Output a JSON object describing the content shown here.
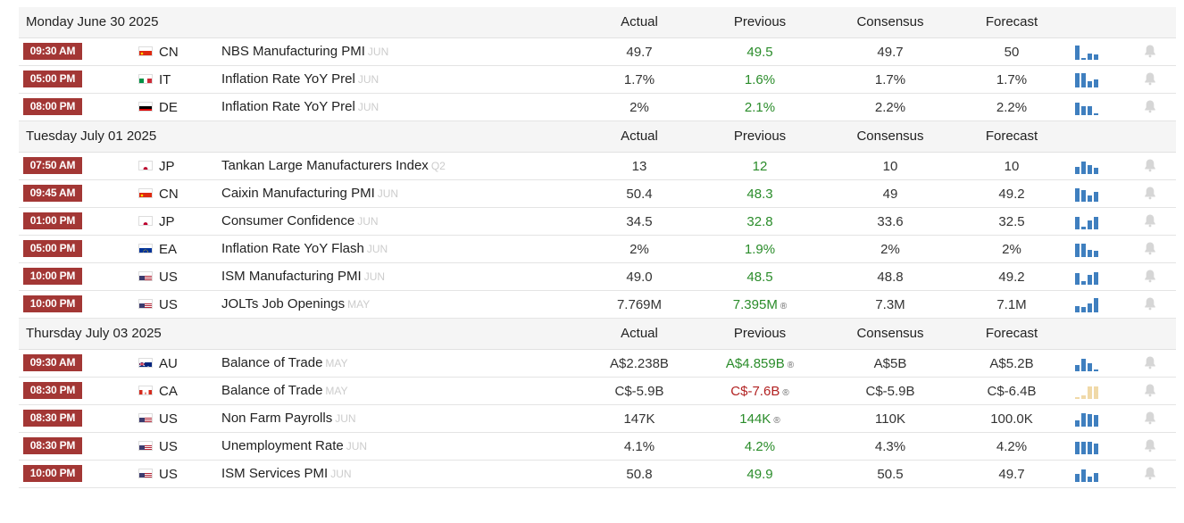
{
  "columns": {
    "actual": "Actual",
    "previous": "Previous",
    "consensus": "Consensus",
    "forecast": "Forecast"
  },
  "colors": {
    "time_badge": "#a33735",
    "previous_up": "#2a8c2a",
    "previous_down": "#b22222",
    "spark_blue": "#3f7fbf",
    "spark_tan": "#f0d9a8"
  },
  "days": [
    {
      "date": "Monday June 30 2025",
      "events": [
        {
          "time": "09:30 AM",
          "country": "CN",
          "flag": "china-flag-icon",
          "event": "NBS Manufacturing PMI",
          "ref": "JUN",
          "actual": "49.7",
          "previous": "49.5",
          "previous_color": "green",
          "revised": false,
          "consensus": "49.7",
          "forecast": "50",
          "spark_color": "blue",
          "spark": [
            1.0,
            0.15,
            0.45,
            0.4
          ]
        },
        {
          "time": "05:00 PM",
          "country": "IT",
          "flag": "italy-flag-icon",
          "event": "Inflation Rate YoY Prel",
          "ref": "JUN",
          "actual": "1.7%",
          "previous": "1.6%",
          "previous_color": "green",
          "revised": false,
          "consensus": "1.7%",
          "forecast": "1.7%",
          "spark_color": "blue",
          "spark": [
            1.0,
            1.0,
            0.45,
            0.55
          ]
        },
        {
          "time": "08:00 PM",
          "country": "DE",
          "flag": "germany-flag-icon",
          "event": "Inflation Rate YoY Prel",
          "ref": "JUN",
          "actual": "2%",
          "previous": "2.1%",
          "previous_color": "green",
          "revised": false,
          "consensus": "2.2%",
          "forecast": "2.2%",
          "spark_color": "blue",
          "spark": [
            0.9,
            0.65,
            0.6,
            0.15
          ]
        }
      ]
    },
    {
      "date": "Tuesday July 01 2025",
      "events": [
        {
          "time": "07:50 AM",
          "country": "JP",
          "flag": "japan-flag-icon",
          "event": "Tankan Large Manufacturers Index",
          "ref": "Q2",
          "actual": "13",
          "previous": "12",
          "previous_color": "green",
          "revised": false,
          "consensus": "10",
          "forecast": "10",
          "spark_color": "blue",
          "spark": [
            0.5,
            0.85,
            0.6,
            0.45
          ]
        },
        {
          "time": "09:45 AM",
          "country": "CN",
          "flag": "china-flag-icon",
          "event": "Caixin Manufacturing PMI",
          "ref": "JUN",
          "actual": "50.4",
          "previous": "48.3",
          "previous_color": "green",
          "revised": false,
          "consensus": "49",
          "forecast": "49.2",
          "spark_color": "blue",
          "spark": [
            0.95,
            0.8,
            0.45,
            0.7
          ]
        },
        {
          "time": "01:00 PM",
          "country": "JP",
          "flag": "japan-flag-icon",
          "event": "Consumer Confidence",
          "ref": "JUN",
          "actual": "34.5",
          "previous": "32.8",
          "previous_color": "green",
          "revised": false,
          "consensus": "33.6",
          "forecast": "32.5",
          "spark_color": "blue",
          "spark": [
            0.9,
            0.2,
            0.65,
            0.9
          ]
        },
        {
          "time": "05:00 PM",
          "country": "EA",
          "flag": "eu-flag-icon",
          "event": "Inflation Rate YoY Flash",
          "ref": "JUN",
          "actual": "2%",
          "previous": "1.9%",
          "previous_color": "green",
          "revised": false,
          "consensus": "2%",
          "forecast": "2%",
          "spark_color": "blue",
          "spark": [
            0.95,
            0.95,
            0.5,
            0.45
          ]
        },
        {
          "time": "10:00 PM",
          "country": "US",
          "flag": "usa-flag-icon",
          "event": "ISM Manufacturing PMI",
          "ref": "JUN",
          "actual": "49.0",
          "previous": "48.5",
          "previous_color": "green",
          "revised": false,
          "consensus": "48.8",
          "forecast": "49.2",
          "spark_color": "blue",
          "spark": [
            0.8,
            0.25,
            0.7,
            0.85
          ]
        },
        {
          "time": "10:00 PM",
          "country": "US",
          "flag": "usa-flag-icon",
          "event": "JOLTs Job Openings",
          "ref": "MAY",
          "actual": "7.769M",
          "previous": "7.395M",
          "previous_color": "green",
          "revised": true,
          "consensus": "7.3M",
          "forecast": "7.1M",
          "spark_color": "blue",
          "spark": [
            0.45,
            0.4,
            0.65,
            1.0
          ]
        }
      ]
    },
    {
      "date": "Thursday July 03 2025",
      "events": [
        {
          "time": "09:30 AM",
          "country": "AU",
          "flag": "australia-flag-icon",
          "event": "Balance of Trade",
          "ref": "MAY",
          "actual": "A$2.238B",
          "previous": "A$4.859B",
          "previous_color": "green",
          "revised": true,
          "consensus": "A$5B",
          "forecast": "A$5.2B",
          "spark_color": "blue",
          "spark": [
            0.45,
            0.85,
            0.55,
            0.1
          ]
        },
        {
          "time": "08:30 PM",
          "country": "CA",
          "flag": "canada-flag-icon",
          "event": "Balance of Trade",
          "ref": "MAY",
          "actual": "C$-5.9B",
          "previous": "C$-7.6B",
          "previous_color": "red",
          "revised": true,
          "consensus": "C$-5.9B",
          "forecast": "C$-6.4B",
          "spark_color": "tan",
          "spark": [
            0.15,
            0.25,
            0.85,
            0.85
          ]
        },
        {
          "time": "08:30 PM",
          "country": "US",
          "flag": "usa-flag-icon",
          "event": "Non Farm Payrolls",
          "ref": "JUN",
          "actual": "147K",
          "previous": "144K",
          "previous_color": "green",
          "revised": true,
          "consensus": "110K",
          "forecast": "100.0K",
          "spark_color": "blue",
          "spark": [
            0.45,
            0.95,
            0.85,
            0.8
          ]
        },
        {
          "time": "08:30 PM",
          "country": "US",
          "flag": "usa-flag-icon",
          "event": "Unemployment Rate",
          "ref": "JUN",
          "actual": "4.1%",
          "previous": "4.2%",
          "previous_color": "green",
          "revised": false,
          "consensus": "4.3%",
          "forecast": "4.2%",
          "spark_color": "blue",
          "spark": [
            0.85,
            0.85,
            0.85,
            0.75
          ]
        },
        {
          "time": "10:00 PM",
          "country": "US",
          "flag": "usa-flag-icon",
          "event": "ISM Services PMI",
          "ref": "JUN",
          "actual": "50.8",
          "previous": "49.9",
          "previous_color": "green",
          "revised": false,
          "consensus": "50.5",
          "forecast": "49.7",
          "spark_color": "blue",
          "spark": [
            0.55,
            0.85,
            0.4,
            0.6
          ]
        }
      ]
    }
  ]
}
